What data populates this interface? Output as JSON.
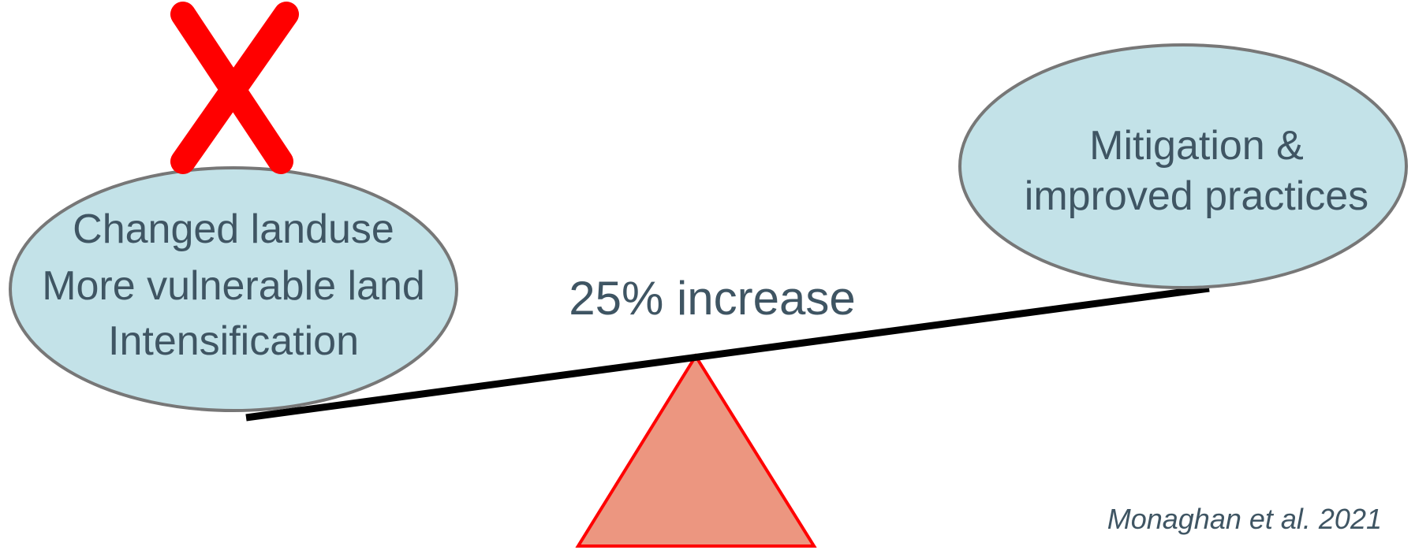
{
  "left_bubble": {
    "lines": [
      "Changed landuse",
      "More vulnerable land",
      "Intensification"
    ]
  },
  "right_bubble": {
    "lines": [
      "Mitigation &",
      "improved practices"
    ]
  },
  "beam_label": "25% increase",
  "citation": "Monaghan et al. 2021",
  "marks": {
    "rejected": "cross-mark-icon"
  },
  "colors": {
    "bubble_fill": "#c3e2e8",
    "bubble_stroke": "#777777",
    "text": "#3f5563",
    "beam": "#000000",
    "fulcrum_fill": "#ec9680",
    "fulcrum_stroke": "#ff0000",
    "cross": "#ff0000"
  }
}
